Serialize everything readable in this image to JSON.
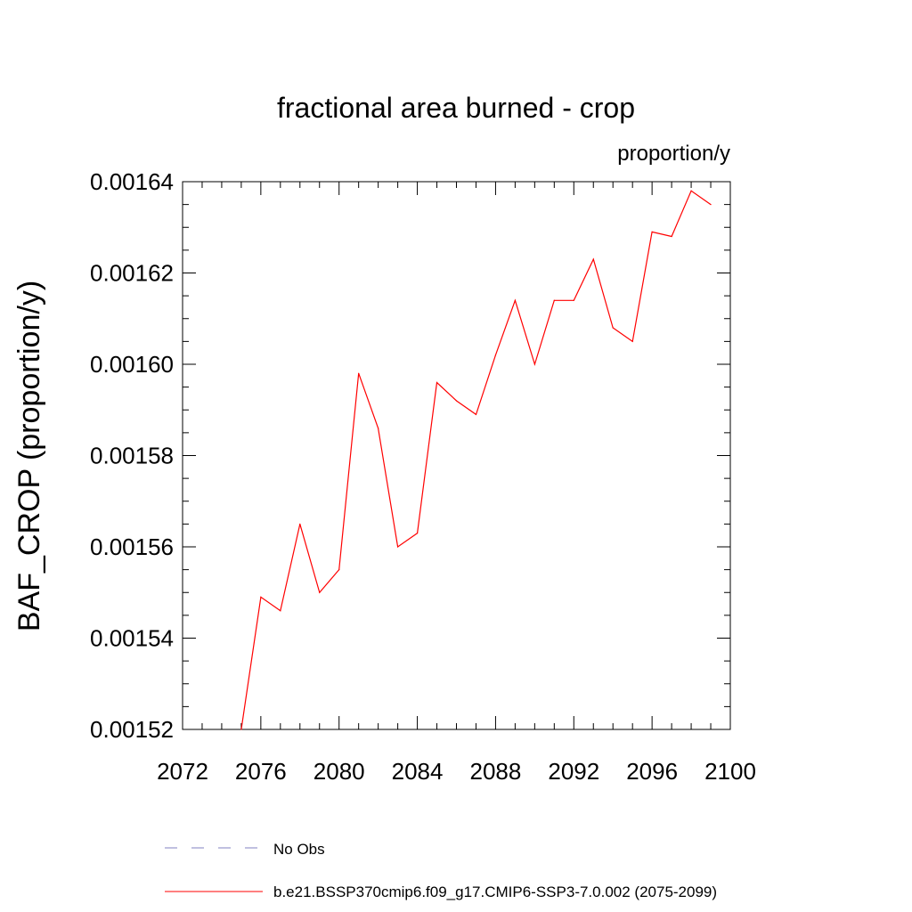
{
  "chart_data": {
    "type": "line",
    "title": "fractional area burned - crop",
    "units_label": "proportion/y",
    "ylabel": "BAF_CROP  (proportion/y)",
    "xlabel": "",
    "xlim": [
      2072,
      2100
    ],
    "ylim": [
      0.00152,
      0.00164
    ],
    "x_ticks": [
      2072,
      2076,
      2080,
      2084,
      2088,
      2092,
      2096,
      2100
    ],
    "x_tick_labels": [
      "2072",
      "2076",
      "2080",
      "2084",
      "2088",
      "2092",
      "2096",
      "2100"
    ],
    "y_ticks": [
      0.00152,
      0.00154,
      0.00156,
      0.00158,
      0.0016,
      0.00162,
      0.00164
    ],
    "y_tick_labels": [
      "0.00152",
      "0.00154",
      "0.00156",
      "0.00158",
      "0.00160",
      "0.00162",
      "0.00164"
    ],
    "grid": false,
    "legend_position": "bottom",
    "legend": [
      {
        "label": "No Obs",
        "color": "#8080c0",
        "style": "dashed"
      },
      {
        "label": "b.e21.BSSP370cmip6.f09_g17.CMIP6-SSP3-7.0.002 (2075-2099)",
        "color": "#ff0000",
        "style": "solid"
      }
    ],
    "series": [
      {
        "name": "b.e21.BSSP370cmip6.f09_g17.CMIP6-SSP3-7.0.002 (2075-2099)",
        "color": "#ff0000",
        "x": [
          2075,
          2076,
          2077,
          2078,
          2079,
          2080,
          2081,
          2082,
          2083,
          2084,
          2085,
          2086,
          2087,
          2088,
          2089,
          2090,
          2091,
          2092,
          2093,
          2094,
          2095,
          2096,
          2097,
          2098,
          2099
        ],
        "y": [
          0.00152,
          0.001549,
          0.001546,
          0.001565,
          0.00155,
          0.001555,
          0.001598,
          0.001586,
          0.00156,
          0.001563,
          0.001596,
          0.001592,
          0.001589,
          0.001602,
          0.001614,
          0.0016,
          0.001614,
          0.001614,
          0.001623,
          0.001608,
          0.001605,
          0.001629,
          0.001628,
          0.001638,
          0.001635
        ]
      }
    ]
  }
}
